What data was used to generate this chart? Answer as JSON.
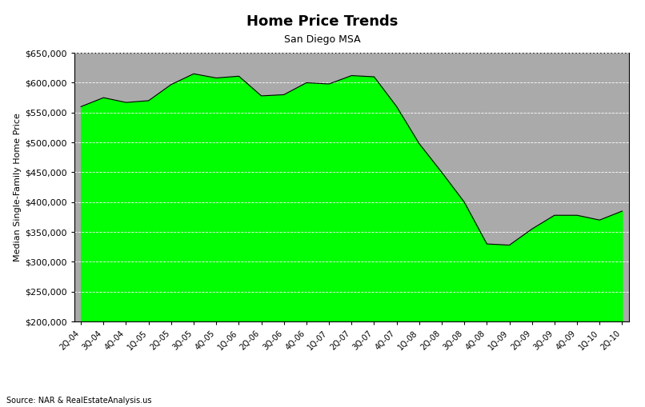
{
  "title": "Home Price Trends",
  "subtitle": "San Diego MSA",
  "ylabel": "Median Single-Family Home Price",
  "source": "Source: NAR & RealEstateAnalysis.us",
  "fill_color": "#00FF00",
  "line_color": "#000000",
  "background_color": "#AAAAAA",
  "fig_facecolor": "#FFFFFF",
  "ylim": [
    200000,
    650000
  ],
  "yticks": [
    200000,
    250000,
    300000,
    350000,
    400000,
    450000,
    500000,
    550000,
    600000,
    650000
  ],
  "labels": [
    "2Q-04",
    "3Q-04",
    "4Q-04",
    "1Q-05",
    "2Q-05",
    "3Q-05",
    "4Q-05",
    "1Q-06",
    "2Q-06",
    "3Q-06",
    "4Q-06",
    "1Q-07",
    "2Q-07",
    "3Q-07",
    "4Q-07",
    "1Q-08",
    "2Q-08",
    "3Q-08",
    "4Q-08",
    "1Q-09",
    "2Q-09",
    "3Q-09",
    "4Q-09",
    "1Q-10",
    "2Q-10"
  ],
  "values": [
    560000,
    575000,
    567000,
    570000,
    597000,
    615000,
    608000,
    611000,
    578000,
    580000,
    600000,
    598000,
    612000,
    610000,
    560000,
    498000,
    450000,
    400000,
    330000,
    328000,
    355000,
    378000,
    378000,
    370000,
    385000
  ],
  "title_fontsize": 13,
  "subtitle_fontsize": 9,
  "ylabel_fontsize": 8,
  "ytick_fontsize": 8,
  "xtick_fontsize": 7,
  "source_fontsize": 7
}
